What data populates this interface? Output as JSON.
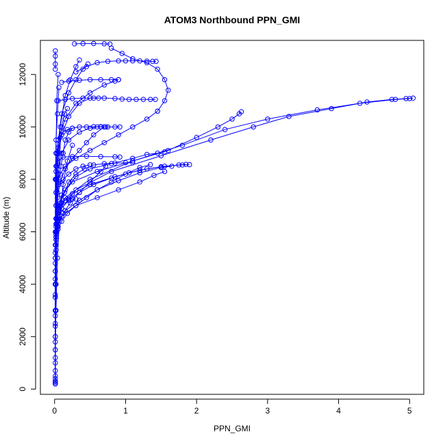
{
  "chart_data": {
    "type": "scatter",
    "title": "ATOM3 Northbound PPN_GMI",
    "xlabel": "PPN_GMI",
    "ylabel": "Altitude (m)",
    "xlim": [
      -0.2,
      5.2
    ],
    "ylim": [
      -200,
      13300
    ],
    "x_ticks": [
      0,
      1,
      2,
      3,
      4,
      5
    ],
    "y_ticks": [
      0,
      2000,
      4000,
      6000,
      8000,
      10000,
      12000
    ],
    "x_tick_labels": [
      "0",
      "1",
      "2",
      "3",
      "4",
      "5"
    ],
    "y_tick_labels": [
      "0",
      "2000",
      "4000",
      "6000",
      "8000",
      "10000",
      "12000"
    ],
    "grid": false,
    "color": "#0000ff",
    "marker": "open-circle",
    "series": [
      {
        "x": [
          0.01,
          0.01,
          0.01,
          0.01,
          0.01,
          0.01,
          0.01,
          0.01,
          0.01,
          0.02,
          0.02,
          0.02,
          0.03,
          0.05,
          0.1,
          0.2,
          0.35,
          0.55,
          0.8,
          1.05,
          1.3,
          1.55,
          1.8,
          1.9
        ],
        "y": [
          200,
          700,
          1200,
          1800,
          2400,
          3000,
          3600,
          4200,
          4800,
          5300,
          5700,
          6000,
          6300,
          6600,
          6900,
          7200,
          7500,
          7800,
          8050,
          8250,
          8400,
          8500,
          8550,
          8560
        ]
      },
      {
        "x": [
          0.01,
          0.01,
          0.01,
          0.01,
          0.01,
          0.02,
          0.02,
          0.04,
          0.1,
          0.25,
          0.5,
          0.85,
          1.2,
          1.5,
          1.75,
          1.85
        ],
        "y": [
          300,
          1500,
          2800,
          4000,
          5200,
          5900,
          6300,
          6700,
          7100,
          7450,
          7800,
          8100,
          8350,
          8480,
          8550,
          8570
        ]
      },
      {
        "x": [
          0.01,
          0.01,
          0.01,
          0.02,
          0.05,
          0.15,
          0.35,
          0.6,
          0.9,
          1.2,
          1.5,
          1.65
        ],
        "y": [
          400,
          2500,
          4500,
          5800,
          6400,
          6800,
          7200,
          7600,
          7950,
          8250,
          8450,
          8500
        ]
      },
      {
        "x": [
          0.01,
          0.01,
          0.02,
          0.04,
          0.1,
          0.3,
          0.6,
          0.9,
          1.2,
          1.4,
          1.55
        ],
        "y": [
          250,
          3000,
          5500,
          6200,
          6600,
          7000,
          7300,
          7600,
          7900,
          8150,
          8300
        ]
      },
      {
        "x": [
          0.01,
          0.01,
          0.01,
          0.02,
          0.04,
          0.1,
          0.25,
          0.6,
          1.1,
          1.6,
          2.0,
          2.3,
          2.5,
          2.6,
          2.63
        ],
        "y": [
          200,
          2000,
          4500,
          6000,
          6800,
          7400,
          7900,
          8300,
          8700,
          9100,
          9600,
          10000,
          10300,
          10500,
          10580
        ]
      },
      {
        "x": [
          0.01,
          0.01,
          0.03,
          0.1,
          0.3,
          0.8,
          1.5,
          2.2,
          2.8,
          3.3,
          3.9,
          4.4,
          4.75,
          4.95,
          5.05
        ],
        "y": [
          300,
          3500,
          6000,
          6900,
          7600,
          8300,
          8900,
          9500,
          10000,
          10400,
          10700,
          10950,
          11050,
          11080,
          11100
        ]
      },
      {
        "x": [
          0.01,
          0.01,
          0.03,
          0.15,
          0.5,
          1.1,
          1.8,
          2.4,
          3.0,
          3.7,
          4.3,
          4.8,
          5.0
        ],
        "y": [
          500,
          4000,
          6500,
          7300,
          8000,
          8700,
          9300,
          9900,
          10300,
          10650,
          10900,
          11050,
          11080
        ]
      },
      {
        "x": [
          0.01,
          0.02,
          0.05,
          0.15,
          0.3,
          0.5,
          0.8,
          1.1,
          1.3,
          1.45,
          1.55
        ],
        "y": [
          3000,
          6200,
          7000,
          7600,
          8100,
          8400,
          8600,
          8800,
          8950,
          9000,
          9050
        ]
      },
      {
        "x": [
          0.01,
          0.02,
          0.04,
          0.08,
          0.15,
          0.25,
          0.35,
          0.45,
          0.55,
          0.7
        ],
        "y": [
          4000,
          6500,
          7300,
          7900,
          8400,
          8800,
          9100,
          9400,
          9700,
          10000
        ]
      },
      {
        "x": [
          0.01,
          0.02,
          0.05,
          0.1,
          0.2,
          0.35,
          0.5,
          0.6,
          0.65,
          0.7,
          0.72
        ],
        "y": [
          3500,
          7000,
          8200,
          9000,
          9500,
          9800,
          9950,
          10000,
          10010,
          10000,
          10000
        ]
      },
      {
        "x": [
          0.01,
          0.02,
          0.05,
          0.12,
          0.25,
          0.45,
          0.65,
          0.85,
          0.92
        ],
        "y": [
          5000,
          8300,
          8700,
          8850,
          8870,
          8880,
          8870,
          8860,
          8850
        ]
      },
      {
        "x": [
          0.01,
          0.02,
          0.06,
          0.12,
          0.2,
          0.3,
          0.4,
          0.5
        ],
        "y": [
          5500,
          7500,
          7800,
          8000,
          8200,
          8400,
          8500,
          8550
        ]
      },
      {
        "x": [
          0.02,
          0.03,
          0.05,
          0.08,
          0.12,
          0.18,
          0.25,
          0.35,
          0.45,
          0.55,
          0.65,
          0.75,
          0.85,
          0.92
        ],
        "y": [
          7500,
          8500,
          9200,
          9600,
          9800,
          9900,
          9950,
          10000,
          10000,
          10010,
          10000,
          10000,
          10000,
          10000
        ]
      },
      {
        "x": [
          0.02,
          0.05,
          0.1,
          0.2,
          0.35,
          0.5,
          0.62
        ],
        "y": [
          8000,
          9000,
          9700,
          10400,
          10900,
          11100,
          11100
        ]
      },
      {
        "x": [
          0.02,
          0.05,
          0.15,
          0.3,
          0.5,
          0.7,
          0.85,
          0.9
        ],
        "y": [
          8500,
          9500,
          10300,
          10900,
          11300,
          11600,
          11750,
          11800
        ]
      },
      {
        "x": [
          0.03,
          0.1,
          0.2,
          0.3,
          0.4,
          0.47
        ],
        "y": [
          9000,
          10500,
          11300,
          11800,
          12200,
          12400
        ]
      },
      {
        "x": [
          0.01,
          0.03,
          0.08,
          0.15,
          0.22,
          0.3,
          0.35
        ],
        "y": [
          4000,
          8000,
          10000,
          11200,
          11800,
          12300,
          12550
        ]
      },
      {
        "x": [
          0.28,
          0.4,
          0.55,
          0.7,
          0.78
        ],
        "y": [
          13170,
          13180,
          13180,
          13170,
          13160
        ]
      },
      {
        "x": [
          0.05,
          0.15,
          0.25,
          0.4,
          0.55,
          0.7,
          0.85,
          0.95,
          1.05,
          1.15,
          1.25,
          1.35,
          1.42
        ],
        "y": [
          11000,
          11050,
          11080,
          11100,
          11100,
          11100,
          11080,
          11060,
          11050,
          11050,
          11050,
          11050,
          11050
        ]
      },
      {
        "x": [
          0.3,
          0.45,
          0.6,
          0.75,
          0.9,
          1.0,
          1.1,
          1.2,
          1.3,
          1.38,
          1.43
        ],
        "y": [
          12100,
          12300,
          12450,
          12500,
          12520,
          12520,
          12520,
          12520,
          12510,
          12500,
          12500
        ]
      },
      {
        "x": [
          0.8,
          0.95,
          1.1,
          1.3,
          1.45,
          1.55,
          1.6,
          1.55,
          1.45
        ],
        "y": [
          13000,
          12800,
          12600,
          12450,
          12200,
          11800,
          11400,
          11000,
          10600
        ]
      },
      {
        "x": [
          1.45,
          1.3,
          1.1,
          0.9,
          0.7,
          0.5,
          0.3,
          0.15,
          0.08
        ],
        "y": [
          10600,
          10300,
          10000,
          9700,
          9400,
          9100,
          8800,
          8500,
          8200
        ]
      },
      {
        "x": [
          0.02,
          0.04,
          0.08,
          0.14,
          0.2,
          0.3,
          0.42,
          0.55,
          0.7,
          0.85,
          1.0,
          1.1
        ],
        "y": [
          6000,
          6600,
          7100,
          7500,
          7900,
          8200,
          8400,
          8550,
          8600,
          8620,
          8630,
          8630
        ]
      },
      {
        "x": [
          0.01,
          0.02,
          0.04,
          0.07,
          0.1,
          0.14,
          0.18
        ],
        "y": [
          1000,
          4000,
          7000,
          9000,
          10000,
          10500,
          10700
        ]
      },
      {
        "x": [
          0.01,
          0.01,
          0.02,
          0.03,
          0.05
        ],
        "y": [
          2000,
          6000,
          9000,
          11000,
          12000
        ]
      },
      {
        "x": [
          0.01,
          0.01,
          0.01,
          0.01
        ],
        "y": [
          12200,
          12400,
          12700,
          12900
        ]
      },
      {
        "x": [
          0.01,
          0.01,
          0.02,
          0.04,
          0.06
        ],
        "y": [
          5000,
          8000,
          9500,
          10500,
          11500
        ]
      },
      {
        "x": [
          0.02,
          0.04,
          0.06,
          0.09,
          0.12,
          0.15,
          0.2,
          0.25
        ],
        "y": [
          7000,
          7500,
          8000,
          8500,
          9000,
          9500,
          9800,
          9950
        ]
      },
      {
        "x": [
          0.1,
          0.2,
          0.35,
          0.5,
          0.65,
          0.8,
          0.9
        ],
        "y": [
          11700,
          11750,
          11780,
          11800,
          11800,
          11800,
          11800
        ]
      },
      {
        "x": [
          0.02,
          0.05,
          0.1,
          0.15,
          0.2,
          0.25,
          0.3
        ],
        "y": [
          6500,
          6900,
          7100,
          7200,
          7250,
          7250,
          7250
        ]
      },
      {
        "x": [
          0.02,
          0.05,
          0.12,
          0.22,
          0.35,
          0.5,
          0.65,
          0.72
        ],
        "y": [
          5800,
          6200,
          6700,
          7100,
          7500,
          7900,
          8300,
          8500
        ]
      },
      {
        "x": [
          0.01,
          0.02,
          0.04,
          0.07,
          0.12,
          0.18,
          0.25
        ],
        "y": [
          1500,
          3000,
          5000,
          6500,
          7800,
          8700,
          9300
        ]
      },
      {
        "x": [
          0.02,
          0.05,
          0.1,
          0.18,
          0.3,
          0.45,
          0.6,
          0.8,
          1.0,
          1.2,
          1.35
        ],
        "y": [
          5700,
          6100,
          6400,
          6700,
          7000,
          7300,
          7600,
          7900,
          8200,
          8450,
          8560
        ]
      }
    ]
  }
}
